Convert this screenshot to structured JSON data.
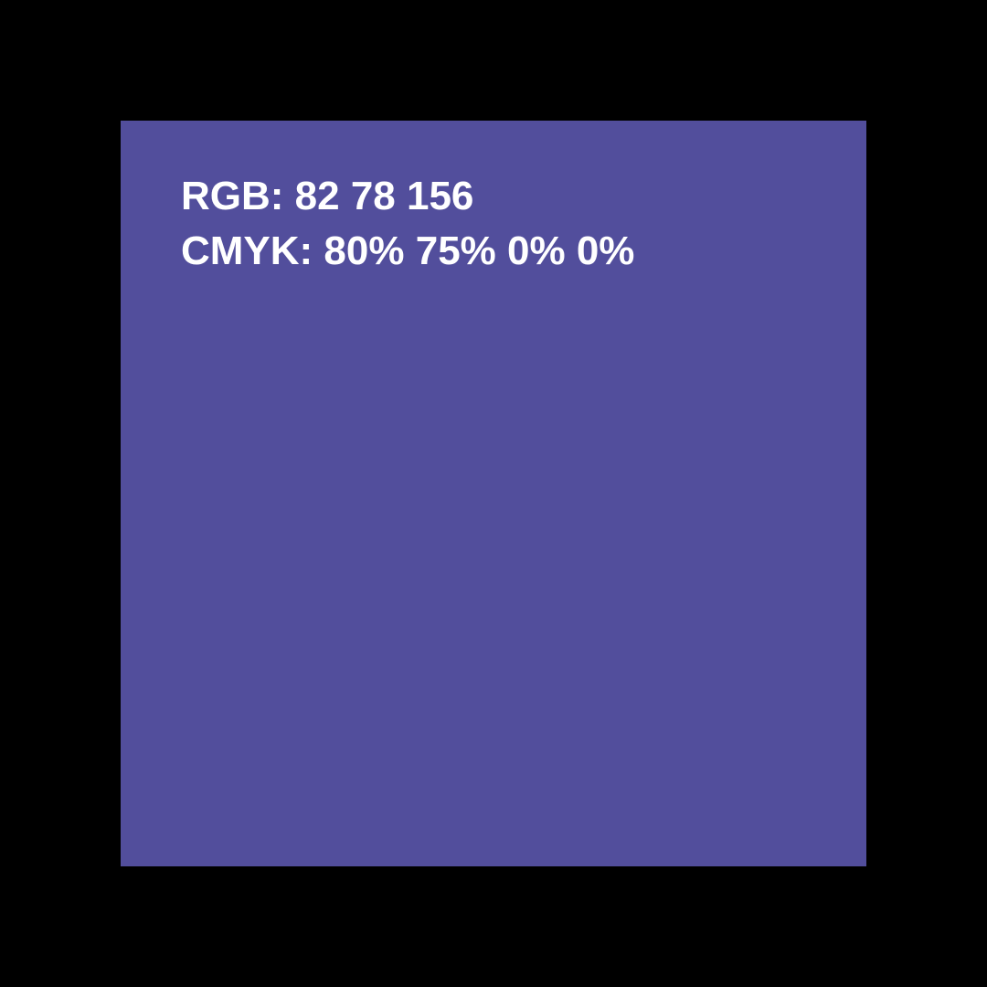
{
  "swatch": {
    "color": "#524e9c",
    "rgb_label": "RGB: 82 78 156",
    "cmyk_label": "CMYK: 80% 75% 0% 0%"
  },
  "background_color": "#000000",
  "text_color": "#ffffff"
}
